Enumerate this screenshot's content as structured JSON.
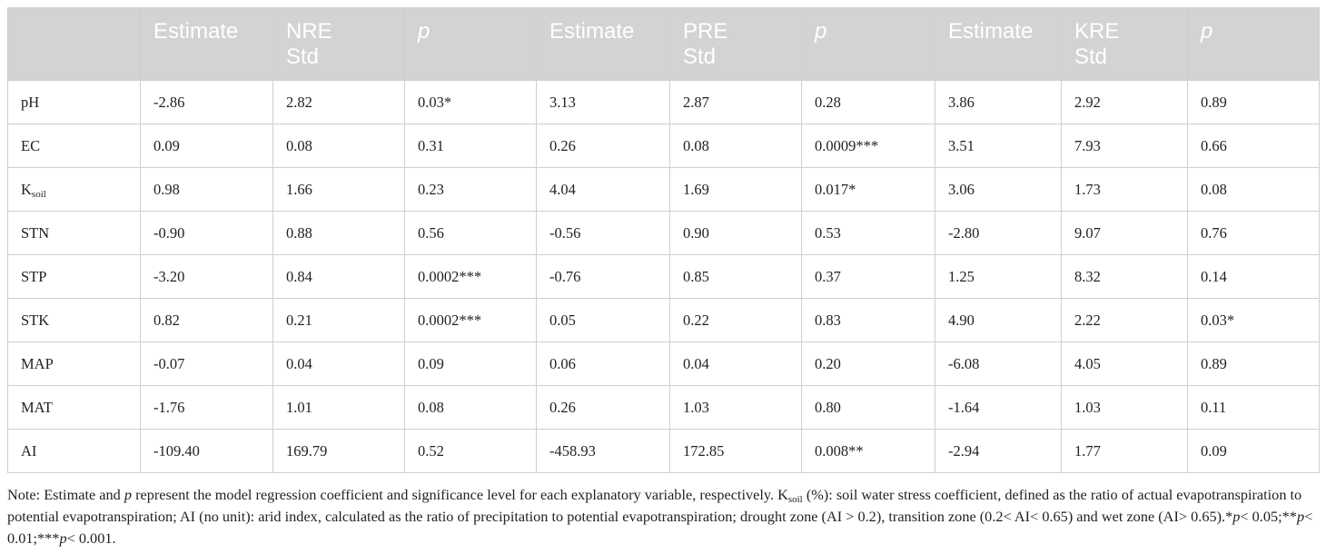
{
  "table": {
    "headers": [
      "",
      "Estimate",
      "NRE\nStd",
      "p",
      "Estimate",
      "PRE\nStd",
      "p",
      "Estimate",
      "KRE\nStd",
      "p"
    ],
    "rows": [
      [
        {
          "text": "pH"
        },
        "-2.86",
        "2.82",
        "0.03*",
        "3.13",
        "2.87",
        "0.28",
        "3.86",
        "2.92",
        "0.89"
      ],
      [
        {
          "text": "EC"
        },
        "0.09",
        "0.08",
        "0.31",
        "0.26",
        "0.08",
        "0.0009***",
        "3.51",
        "7.93",
        "0.66"
      ],
      [
        {
          "text": "K",
          "sub": "soil"
        },
        "0.98",
        "1.66",
        "0.23",
        "4.04",
        "1.69",
        "0.017*",
        "3.06",
        "1.73",
        "0.08"
      ],
      [
        {
          "text": "STN"
        },
        "-0.90",
        "0.88",
        "0.56",
        "-0.56",
        "0.90",
        "0.53",
        "-2.80",
        "9.07",
        "0.76"
      ],
      [
        {
          "text": "STP"
        },
        "-3.20",
        "0.84",
        "0.0002***",
        "-0.76",
        "0.85",
        "0.37",
        "1.25",
        "8.32",
        "0.14"
      ],
      [
        {
          "text": "STK"
        },
        "0.82",
        "0.21",
        "0.0002***",
        "0.05",
        "0.22",
        "0.83",
        "4.90",
        "2.22",
        "0.03*"
      ],
      [
        {
          "text": "MAP"
        },
        "-0.07",
        "0.04",
        "0.09",
        "0.06",
        "0.04",
        "0.20",
        "-6.08",
        "4.05",
        "0.89"
      ],
      [
        {
          "text": "MAT"
        },
        "-1.76",
        "1.01",
        "0.08",
        "0.26",
        "1.03",
        "0.80",
        "-1.64",
        "1.03",
        "0.11"
      ],
      [
        {
          "text": "AI"
        },
        "-109.40",
        "169.79",
        "0.52",
        "-458.93",
        "172.85",
        "0.008**",
        "-2.94",
        "1.77",
        "0.09"
      ]
    ]
  },
  "note": [
    {
      "text": "Note: Estimate and "
    },
    {
      "text": "p",
      "italic": true
    },
    {
      "text": " represent the model regression coefficient and significance level for each explanatory variable, respectively. K"
    },
    {
      "text": "soil",
      "sub": true
    },
    {
      "text": " (%): soil water stress coefficient, defined as the ratio of actual evapotranspiration to potential evapotranspiration; AI (no unit): arid index, calculated as the ratio of precipitation to potential evapotranspiration; drought zone (AI > 0.2), transition zone (0.2< AI< 0.65) and wet zone (AI> 0.65).*"
    },
    {
      "text": "p",
      "italic": true
    },
    {
      "text": "< 0.05;**"
    },
    {
      "text": "p",
      "italic": true
    },
    {
      "text": "< 0.01;***"
    },
    {
      "text": "p",
      "italic": true
    },
    {
      "text": "< 0.001."
    }
  ]
}
